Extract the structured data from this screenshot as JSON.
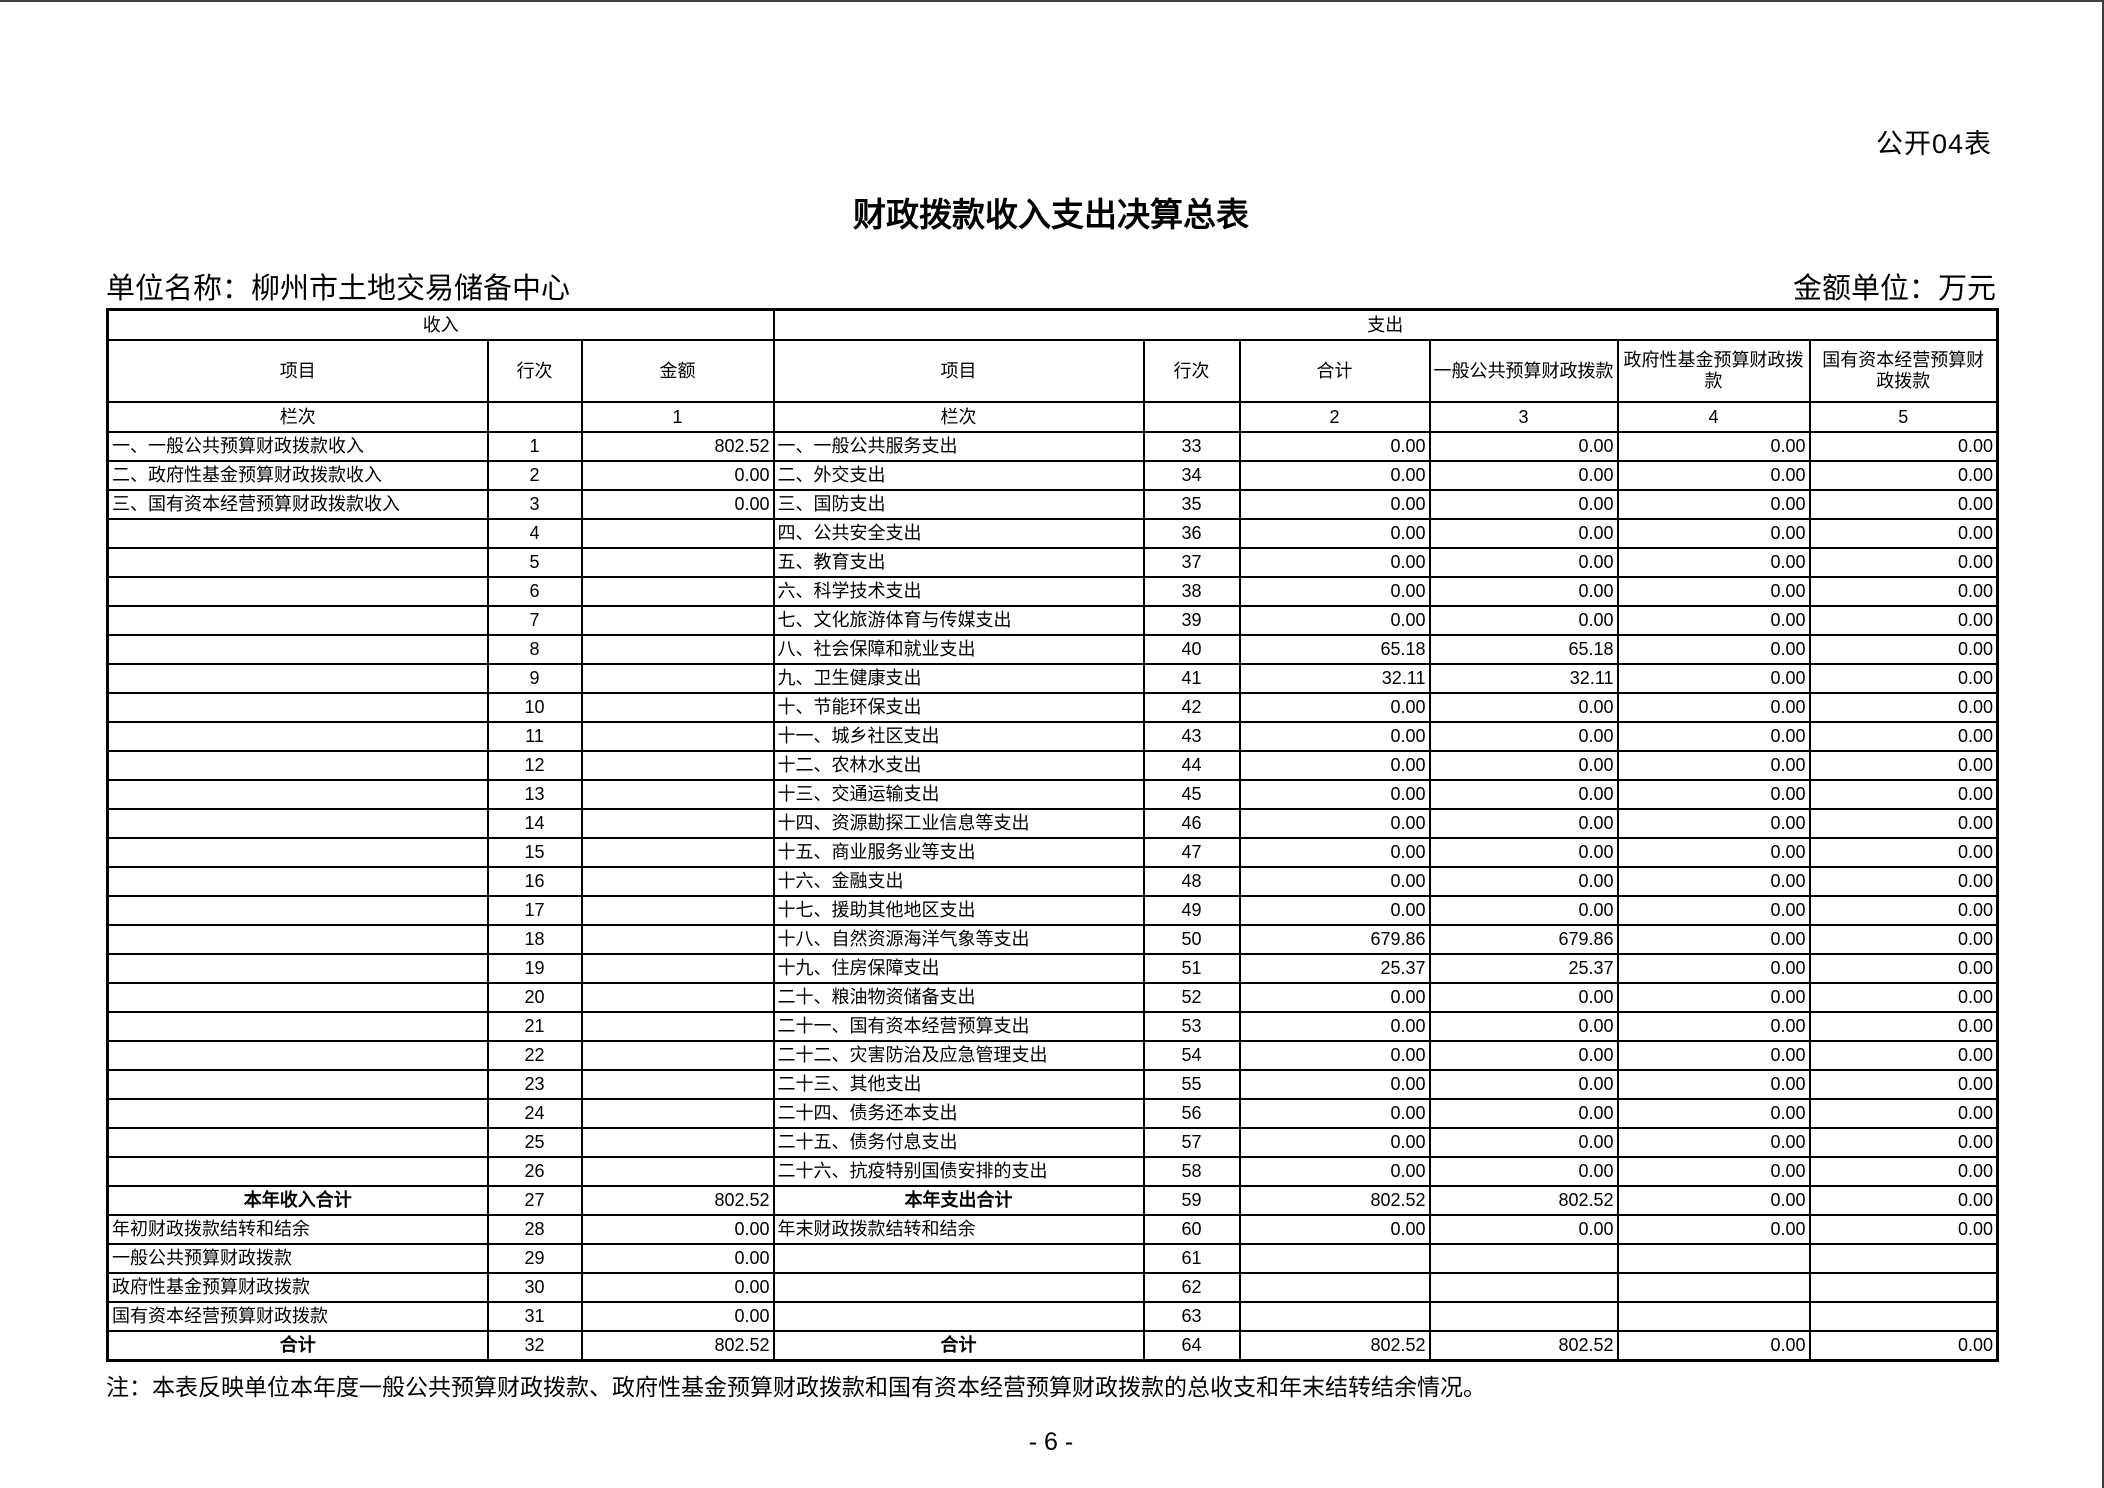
{
  "page": {
    "form_code": "公开04表",
    "title": "财政拨款收入支出决算总表",
    "unit_label": "单位名称：柳州市土地交易储备中心",
    "amount_unit": "金额单位：万元",
    "footnote": "注：本表反映单位本年度一般公共预算财政拨款、政府性基金预算财政拨款和国有资本经营预算财政拨款的总收支和年末结转结余情况。",
    "page_number": "- 6 -"
  },
  "table": {
    "sections": {
      "income": "收入",
      "expenditure": "支出"
    },
    "headers": {
      "item": "项目",
      "line": "行次",
      "amount": "金额",
      "total": "合计",
      "general": "一般公共预算财政拨款",
      "govfund": "政府性基金预算财政拨款",
      "statecap": "国有资本经营预算财政拨款",
      "col_index_label": "栏次",
      "col_numbers": {
        "amount": "1",
        "total": "2",
        "general": "3",
        "govfund": "4",
        "statecap": "5"
      }
    },
    "rows": [
      {
        "i_item": "一、一般公共预算财政拨款收入",
        "i_line": "1",
        "i_amt": "802.52",
        "e_item": "一、一般公共服务支出",
        "e_line": "33",
        "e_total": "0.00",
        "e_gen": "0.00",
        "e_gov": "0.00",
        "e_cap": "0.00"
      },
      {
        "i_item": "二、政府性基金预算财政拨款收入",
        "i_line": "2",
        "i_amt": "0.00",
        "e_item": "二、外交支出",
        "e_line": "34",
        "e_total": "0.00",
        "e_gen": "0.00",
        "e_gov": "0.00",
        "e_cap": "0.00"
      },
      {
        "i_item": "三、国有资本经营预算财政拨款收入",
        "i_line": "3",
        "i_amt": "0.00",
        "e_item": "三、国防支出",
        "e_line": "35",
        "e_total": "0.00",
        "e_gen": "0.00",
        "e_gov": "0.00",
        "e_cap": "0.00"
      },
      {
        "i_item": "",
        "i_line": "4",
        "i_amt": "",
        "e_item": "四、公共安全支出",
        "e_line": "36",
        "e_total": "0.00",
        "e_gen": "0.00",
        "e_gov": "0.00",
        "e_cap": "0.00"
      },
      {
        "i_item": "",
        "i_line": "5",
        "i_amt": "",
        "e_item": "五、教育支出",
        "e_line": "37",
        "e_total": "0.00",
        "e_gen": "0.00",
        "e_gov": "0.00",
        "e_cap": "0.00"
      },
      {
        "i_item": "",
        "i_line": "6",
        "i_amt": "",
        "e_item": "六、科学技术支出",
        "e_line": "38",
        "e_total": "0.00",
        "e_gen": "0.00",
        "e_gov": "0.00",
        "e_cap": "0.00"
      },
      {
        "i_item": "",
        "i_line": "7",
        "i_amt": "",
        "e_item": "七、文化旅游体育与传媒支出",
        "e_line": "39",
        "e_total": "0.00",
        "e_gen": "0.00",
        "e_gov": "0.00",
        "e_cap": "0.00"
      },
      {
        "i_item": "",
        "i_line": "8",
        "i_amt": "",
        "e_item": "八、社会保障和就业支出",
        "e_line": "40",
        "e_total": "65.18",
        "e_gen": "65.18",
        "e_gov": "0.00",
        "e_cap": "0.00"
      },
      {
        "i_item": "",
        "i_line": "9",
        "i_amt": "",
        "e_item": "九、卫生健康支出",
        "e_line": "41",
        "e_total": "32.11",
        "e_gen": "32.11",
        "e_gov": "0.00",
        "e_cap": "0.00"
      },
      {
        "i_item": "",
        "i_line": "10",
        "i_amt": "",
        "e_item": "十、节能环保支出",
        "e_line": "42",
        "e_total": "0.00",
        "e_gen": "0.00",
        "e_gov": "0.00",
        "e_cap": "0.00"
      },
      {
        "i_item": "",
        "i_line": "11",
        "i_amt": "",
        "e_item": "十一、城乡社区支出",
        "e_line": "43",
        "e_total": "0.00",
        "e_gen": "0.00",
        "e_gov": "0.00",
        "e_cap": "0.00"
      },
      {
        "i_item": "",
        "i_line": "12",
        "i_amt": "",
        "e_item": "十二、农林水支出",
        "e_line": "44",
        "e_total": "0.00",
        "e_gen": "0.00",
        "e_gov": "0.00",
        "e_cap": "0.00"
      },
      {
        "i_item": "",
        "i_line": "13",
        "i_amt": "",
        "e_item": "十三、交通运输支出",
        "e_line": "45",
        "e_total": "0.00",
        "e_gen": "0.00",
        "e_gov": "0.00",
        "e_cap": "0.00"
      },
      {
        "i_item": "",
        "i_line": "14",
        "i_amt": "",
        "e_item": "十四、资源勘探工业信息等支出",
        "e_line": "46",
        "e_total": "0.00",
        "e_gen": "0.00",
        "e_gov": "0.00",
        "e_cap": "0.00"
      },
      {
        "i_item": "",
        "i_line": "15",
        "i_amt": "",
        "e_item": "十五、商业服务业等支出",
        "e_line": "47",
        "e_total": "0.00",
        "e_gen": "0.00",
        "e_gov": "0.00",
        "e_cap": "0.00"
      },
      {
        "i_item": "",
        "i_line": "16",
        "i_amt": "",
        "e_item": "十六、金融支出",
        "e_line": "48",
        "e_total": "0.00",
        "e_gen": "0.00",
        "e_gov": "0.00",
        "e_cap": "0.00"
      },
      {
        "i_item": "",
        "i_line": "17",
        "i_amt": "",
        "e_item": "十七、援助其他地区支出",
        "e_line": "49",
        "e_total": "0.00",
        "e_gen": "0.00",
        "e_gov": "0.00",
        "e_cap": "0.00"
      },
      {
        "i_item": "",
        "i_line": "18",
        "i_amt": "",
        "e_item": "十八、自然资源海洋气象等支出",
        "e_line": "50",
        "e_total": "679.86",
        "e_gen": "679.86",
        "e_gov": "0.00",
        "e_cap": "0.00"
      },
      {
        "i_item": "",
        "i_line": "19",
        "i_amt": "",
        "e_item": "十九、住房保障支出",
        "e_line": "51",
        "e_total": "25.37",
        "e_gen": "25.37",
        "e_gov": "0.00",
        "e_cap": "0.00"
      },
      {
        "i_item": "",
        "i_line": "20",
        "i_amt": "",
        "e_item": "二十、粮油物资储备支出",
        "e_line": "52",
        "e_total": "0.00",
        "e_gen": "0.00",
        "e_gov": "0.00",
        "e_cap": "0.00"
      },
      {
        "i_item": "",
        "i_line": "21",
        "i_amt": "",
        "e_item": "二十一、国有资本经营预算支出",
        "e_line": "53",
        "e_total": "0.00",
        "e_gen": "0.00",
        "e_gov": "0.00",
        "e_cap": "0.00"
      },
      {
        "i_item": "",
        "i_line": "22",
        "i_amt": "",
        "e_item": "二十二、灾害防治及应急管理支出",
        "e_line": "54",
        "e_total": "0.00",
        "e_gen": "0.00",
        "e_gov": "0.00",
        "e_cap": "0.00"
      },
      {
        "i_item": "",
        "i_line": "23",
        "i_amt": "",
        "e_item": "二十三、其他支出",
        "e_line": "55",
        "e_total": "0.00",
        "e_gen": "0.00",
        "e_gov": "0.00",
        "e_cap": "0.00"
      },
      {
        "i_item": "",
        "i_line": "24",
        "i_amt": "",
        "e_item": "二十四、债务还本支出",
        "e_line": "56",
        "e_total": "0.00",
        "e_gen": "0.00",
        "e_gov": "0.00",
        "e_cap": "0.00"
      },
      {
        "i_item": "",
        "i_line": "25",
        "i_amt": "",
        "e_item": "二十五、债务付息支出",
        "e_line": "57",
        "e_total": "0.00",
        "e_gen": "0.00",
        "e_gov": "0.00",
        "e_cap": "0.00"
      },
      {
        "i_item": "",
        "i_line": "26",
        "i_amt": "",
        "e_item": "二十六、抗疫特别国债安排的支出",
        "e_line": "58",
        "e_total": "0.00",
        "e_gen": "0.00",
        "e_gov": "0.00",
        "e_cap": "0.00"
      },
      {
        "i_item": "本年收入合计",
        "i_line": "27",
        "i_amt": "802.52",
        "i_style": "total",
        "e_item": "本年支出合计",
        "e_style": "total",
        "e_line": "59",
        "e_total": "802.52",
        "e_gen": "802.52",
        "e_gov": "0.00",
        "e_cap": "0.00"
      },
      {
        "i_item": "年初财政拨款结转和结余",
        "i_line": "28",
        "i_amt": "0.00",
        "e_item": "年末财政拨款结转和结余",
        "e_line": "60",
        "e_total": "0.00",
        "e_gen": "0.00",
        "e_gov": "0.00",
        "e_cap": "0.00"
      },
      {
        "i_item": "一般公共预算财政拨款",
        "i_line": "29",
        "i_amt": "0.00",
        "i_style": "indent",
        "e_item": "",
        "e_line": "61",
        "e_total": "",
        "e_gen": "",
        "e_gov": "",
        "e_cap": ""
      },
      {
        "i_item": "政府性基金预算财政拨款",
        "i_line": "30",
        "i_amt": "0.00",
        "i_style": "indent",
        "e_item": "",
        "e_line": "62",
        "e_total": "",
        "e_gen": "",
        "e_gov": "",
        "e_cap": ""
      },
      {
        "i_item": "国有资本经营预算财政拨款",
        "i_line": "31",
        "i_amt": "0.00",
        "i_style": "indent",
        "e_item": "",
        "e_line": "63",
        "e_total": "",
        "e_gen": "",
        "e_gov": "",
        "e_cap": ""
      },
      {
        "i_item": "合计",
        "i_line": "32",
        "i_amt": "802.52",
        "i_style": "total",
        "e_item": "合计",
        "e_style": "total",
        "e_line": "64",
        "e_total": "802.52",
        "e_gen": "802.52",
        "e_gov": "0.00",
        "e_cap": "0.00"
      }
    ]
  }
}
